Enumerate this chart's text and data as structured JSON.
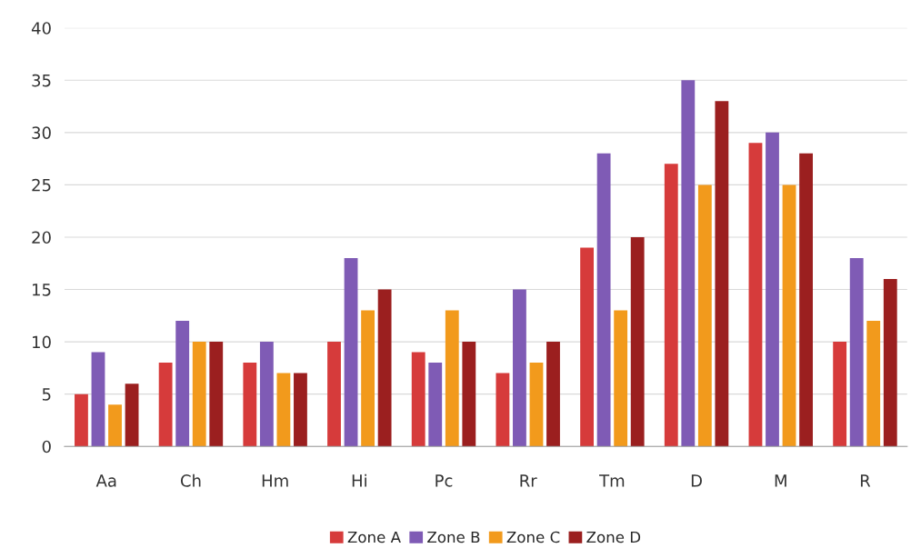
{
  "chart_data": {
    "type": "bar",
    "categories": [
      "Aa",
      "Ch",
      "Hm",
      "Hi",
      "Pc",
      "Rr",
      "Tm",
      "D",
      "M",
      "R"
    ],
    "series": [
      {
        "name": "Zone A",
        "color": "#d63b3b",
        "values": [
          5,
          8,
          8,
          10,
          9,
          7,
          19,
          27,
          29,
          10
        ]
      },
      {
        "name": "Zone B",
        "color": "#7f5bb5",
        "values": [
          9,
          12,
          10,
          18,
          8,
          15,
          28,
          35,
          30,
          18
        ]
      },
      {
        "name": "Zone C",
        "color": "#f29a1c",
        "values": [
          4,
          10,
          7,
          13,
          13,
          8,
          13,
          25,
          25,
          12
        ]
      },
      {
        "name": "Zone D",
        "color": "#9b1f1f",
        "values": [
          6,
          10,
          7,
          15,
          10,
          10,
          20,
          33,
          28,
          16
        ]
      }
    ],
    "ylim": [
      0,
      40
    ],
    "yticks": [
      0,
      5,
      10,
      15,
      20,
      25,
      30,
      35,
      40
    ],
    "grid": "y",
    "legend": "bottom"
  }
}
